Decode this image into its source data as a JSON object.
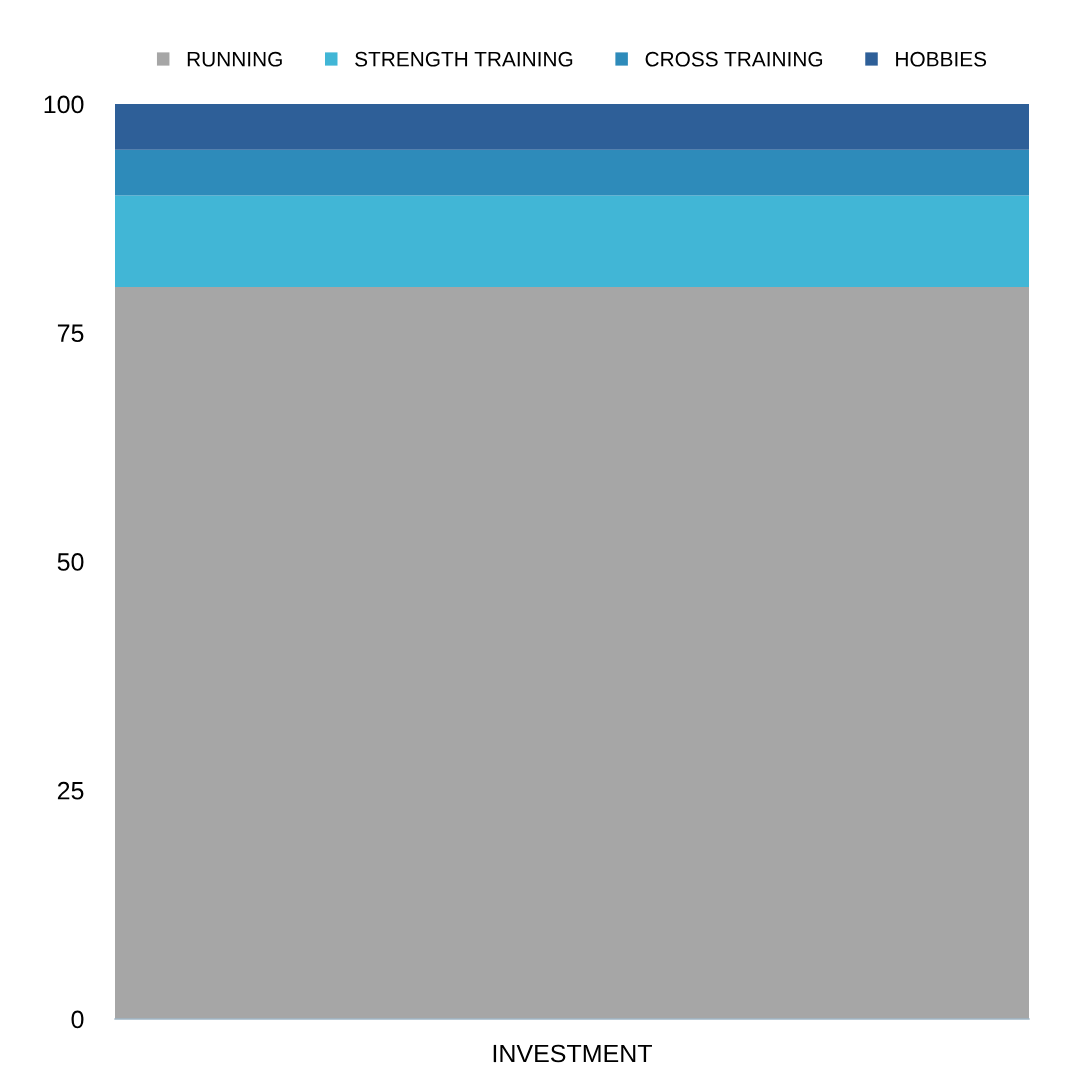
{
  "chart_data": {
    "type": "bar",
    "stacked": true,
    "categories": [
      "INVESTMENT"
    ],
    "series": [
      {
        "name": "RUNNING",
        "color": "#a6a6a6",
        "values": [
          80
        ]
      },
      {
        "name": "STRENGTH TRAINING",
        "color": "#41b6d6",
        "values": [
          10
        ]
      },
      {
        "name": "CROSS TRAINING",
        "color": "#2e8bba",
        "values": [
          5
        ]
      },
      {
        "name": "HOBBIES",
        "color": "#2e5f98",
        "values": [
          5
        ]
      }
    ],
    "ylim": [
      0,
      100
    ],
    "yticks": [
      0,
      25,
      50,
      75,
      100
    ],
    "grid": false,
    "legend": "top"
  }
}
